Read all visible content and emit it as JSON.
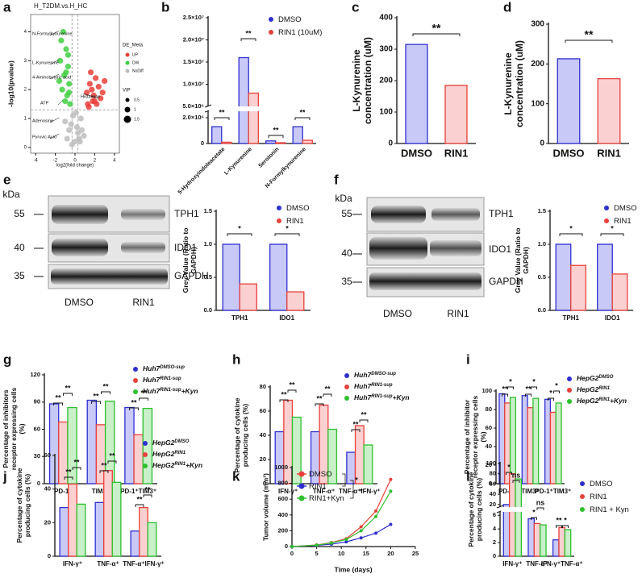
{
  "chart_data": [
    {
      "type": "scatter",
      "label": "a",
      "title": "H_T2DM.vs.H_HC",
      "xlabel": "log2(fold change)",
      "ylabel": "-log10(pvalue)",
      "xlim": [
        -4.5,
        4.5
      ],
      "xticks": [
        -4,
        -2,
        0,
        2,
        4
      ],
      "ylim": [
        -0.2,
        4.6
      ],
      "yticks": [
        0,
        1,
        2,
        3,
        4
      ],
      "threshold_x": [
        -0.3,
        0.3
      ],
      "threshold_y": 1.3,
      "legend_title": "DE_Meta",
      "size_title": "VIP",
      "sizes": [
        0.5,
        1.0,
        1.5
      ],
      "series": [
        {
          "name": "UP",
          "color": "#e8403a",
          "x": [
            1.2,
            1.5,
            1.8,
            2.1,
            2.4,
            1.3,
            1.9,
            2.6,
            3.0,
            1.6,
            2.2,
            1.4,
            2.0,
            2.8,
            1.7
          ],
          "values": [
            1.9,
            2.2,
            1.6,
            2.4,
            2.1,
            1.5,
            1.8,
            1.7,
            2.3,
            2.6,
            1.5,
            1.4,
            1.6,
            1.9,
            2.0
          ]
        },
        {
          "name": "DW",
          "color": "#3fcf3f",
          "x": [
            -1.2,
            -0.9,
            -1.5,
            -0.7,
            -1.1,
            -0.6,
            -1.3,
            -0.8,
            -1.0,
            -0.5,
            -1.4,
            -0.7,
            -0.9,
            -1.6,
            -0.6
          ],
          "values": [
            4.0,
            3.4,
            3.0,
            2.8,
            2.5,
            2.2,
            2.0,
            1.8,
            1.6,
            1.5,
            3.7,
            3.2,
            2.6,
            2.3,
            1.9
          ]
        },
        {
          "name": "NoDiff",
          "color": "#bdbdbd",
          "x": [
            -0.8,
            -0.4,
            0,
            0.3,
            0.6,
            0.9,
            -0.2,
            0.2,
            -0.6,
            0.5,
            -1.0,
            0.1,
            0.4,
            -0.3,
            0.7
          ],
          "values": [
            0.3,
            0.8,
            0.2,
            0.5,
            1.0,
            0.4,
            1.1,
            0.7,
            0.6,
            0.2,
            0.9,
            1.2,
            0.3,
            0.1,
            0.6
          ]
        }
      ],
      "annotations": [
        "N-Formylkynurenine",
        "L-Kynurenine",
        "4-Aminobutyric acid",
        "ATP",
        "Adenosine",
        "Pyruvic Acid",
        "Histamine"
      ]
    },
    {
      "type": "bar",
      "label": "b",
      "categories": [
        "5-Hydroxyindoleacetate",
        "L-Kynurenine",
        "Serotonin",
        "N-Formylkynurenine"
      ],
      "ylim": [
        0,
        25000000
      ],
      "ybreak": [
        2500000,
        5000000
      ],
      "yticks": [
        0,
        {
          "value": 2000000,
          "label": "2.0×10⁶"
        },
        {
          "value": 5000000,
          "label": "5.0×10⁶"
        },
        {
          "value": 10000000,
          "label": "1.0×10⁷"
        },
        {
          "value": 15000000,
          "label": "1.5×10⁷"
        },
        {
          "value": 20000000,
          "label": "2.0×10⁷"
        },
        {
          "value": 25000000,
          "label": "2.5×10⁷"
        }
      ],
      "series": [
        {
          "name": "DMSO",
          "color": "#2f2fd0",
          "fill": "#c9c9f7",
          "values": [
            1300000,
            16000000,
            200000,
            1300000
          ]
        },
        {
          "name": "RIN1 (10uM)",
          "color": "#e8403a",
          "fill": "#fbd0d0",
          "values": [
            100000,
            8000000,
            60000,
            250000
          ]
        }
      ],
      "annotations": [
        "**",
        "**",
        "**",
        "**"
      ]
    },
    {
      "type": "bar",
      "label": "c",
      "ylabel": "L-Kynurenine concentration (uM)",
      "categories": [
        "DMSO",
        "RIN1"
      ],
      "ylim": [
        0,
        400
      ],
      "yticks": [
        0,
        100,
        200,
        300,
        400
      ],
      "series": [
        {
          "colors": [
            "#2f2fd0",
            "#e8403a"
          ],
          "fills": [
            "#c9c9f7",
            "#fbd0d0"
          ],
          "values": [
            315,
            185
          ]
        }
      ],
      "annotations": [
        "**"
      ]
    },
    {
      "type": "bar",
      "label": "d",
      "ylabel": "L-Kynurenine concentration (uM)",
      "categories": [
        "DMSO",
        "RIN1"
      ],
      "ylim": [
        0,
        300
      ],
      "yticks": [
        0,
        100,
        200,
        300
      ],
      "series": [
        {
          "colors": [
            "#2f2fd0",
            "#e8403a"
          ],
          "fills": [
            "#c9c9f7",
            "#fbd0d0"
          ],
          "values": [
            213,
            163
          ]
        }
      ],
      "annotations": [
        "**"
      ]
    },
    {
      "type": "bar",
      "label": "e",
      "ylabel": "Grey Value (Ratio to GAPDH)",
      "categories": [
        "TPH1",
        "IDO1"
      ],
      "ylim": [
        0,
        1.5
      ],
      "yticks": [
        {
          "value": 0,
          "label": "0.0"
        },
        0.5,
        {
          "value": 1,
          "label": "1.0"
        },
        1.5
      ],
      "series": [
        {
          "name": "DMSO",
          "color": "#2f2fd0",
          "fill": "#c9c9f7",
          "values": [
            1.0,
            1.0
          ]
        },
        {
          "name": "RIN1",
          "color": "#e8403a",
          "fill": "#fbd0d0",
          "values": [
            0.4,
            0.28
          ]
        }
      ],
      "annotations": [
        "*",
        "*"
      ],
      "blot": {
        "unit": "kDa",
        "markers": [
          55,
          40,
          35
        ],
        "proteins": [
          "TPH1",
          "IDO1",
          "GAPDH"
        ],
        "lanes": [
          "DMSO",
          "RIN1"
        ]
      }
    },
    {
      "type": "bar",
      "label": "f",
      "ylabel": "Grey Value (Ratio to GAPDH)",
      "categories": [
        "TPH1",
        "IDO1"
      ],
      "ylim": [
        0,
        1.5
      ],
      "yticks": [
        {
          "value": 0,
          "label": "0.0"
        },
        0.5,
        {
          "value": 1,
          "label": "1.0"
        },
        1.5
      ],
      "series": [
        {
          "name": "DMSO",
          "color": "#2f2fd0",
          "fill": "#c9c9f7",
          "values": [
            1.0,
            1.0
          ]
        },
        {
          "name": "RIN1",
          "color": "#e8403a",
          "fill": "#fbd0d0",
          "values": [
            0.68,
            0.55
          ]
        }
      ],
      "annotations": [
        "*",
        "*"
      ],
      "blot": {
        "unit": "kDa",
        "markers": [
          55,
          40,
          35
        ],
        "proteins": [
          "TPH1",
          "IDO1",
          "GAPDH"
        ],
        "lanes": [
          "DMSO",
          "RIN1"
        ]
      }
    },
    {
      "type": "bar",
      "label": "g",
      "ylabel": "Percentage of inhibitors receptor expressing cells (%)",
      "categories": [
        "PD-1⁺",
        "TIM3⁺",
        "PD-1⁺TIM3⁺"
      ],
      "ylim": [
        0,
        120
      ],
      "yticks": [
        0,
        30,
        60,
        90,
        120
      ],
      "series": [
        {
          "name": "Huh7",
          "sup": "DMSO-sup",
          "color": "#2f2fd0",
          "fill": "#c9c9f7",
          "values": [
            88,
            92,
            84
          ]
        },
        {
          "name": "Huh7",
          "sup": "RIN1-sup",
          "color": "#e8403a",
          "fill": "#fbd0d0",
          "values": [
            68,
            65,
            54
          ]
        },
        {
          "name": "Huh7",
          "sup": "RIN1-sup",
          "suffix": "+Kyn",
          "color": "#2ec02e",
          "fill": "#c9f0c9",
          "values": [
            84,
            91,
            83
          ]
        }
      ],
      "annotations": [
        "**",
        "**",
        "**",
        "**",
        "**",
        "**"
      ]
    },
    {
      "type": "bar",
      "label": "h",
      "ylabel": "Percentage of cytokine producing cells (%)",
      "categories": [
        "IFN-γ⁺",
        "TNF-α⁺",
        "TNF-α⁺IFN-γ⁺"
      ],
      "ylim": [
        0,
        80
      ],
      "yticks": [
        0,
        20,
        40,
        60,
        80
      ],
      "series": [
        {
          "name": "Huh7",
          "sup": "DMSO-sup",
          "color": "#2f2fd0",
          "fill": "#c9c9f7",
          "values": [
            43,
            43,
            26
          ]
        },
        {
          "name": "Huh7",
          "sup": "RIN1-sup",
          "color": "#e8403a",
          "fill": "#fbd0d0",
          "values": [
            69,
            65,
            48
          ]
        },
        {
          "name": "Huh7",
          "sup": "RIN1-sup",
          "suffix": "+Kyn",
          "color": "#2ec02e",
          "fill": "#c9f0c9",
          "values": [
            55,
            45,
            32
          ]
        }
      ],
      "annotations": [
        "**",
        "**",
        "**",
        "**",
        "**",
        "**"
      ]
    },
    {
      "type": "bar",
      "label": "i",
      "ylabel": "Percentage of inhibitor receptor expressing cells (%)",
      "categories": [
        "PD-1⁺",
        "TIM3⁺",
        "PD-1⁺TIM3⁺"
      ],
      "ylim": [
        0,
        100
      ],
      "yticks": [
        0,
        20,
        40,
        60,
        80,
        100
      ],
      "series": [
        {
          "name": "HepG2",
          "sup": "DMSO",
          "color": "#2f2fd0",
          "fill": "#c9c9f7",
          "values": [
            97,
            95,
            91
          ]
        },
        {
          "name": "HepG2",
          "sup": "RIN1",
          "color": "#e8403a",
          "fill": "#fbd0d0",
          "values": [
            87,
            82,
            77
          ]
        },
        {
          "name": "HepG2",
          "sup": "RIN1",
          "suffix": "+Kyn",
          "color": "#2ec02e",
          "fill": "#c9f0c9",
          "values": [
            93,
            92,
            87
          ]
        }
      ],
      "annotations": [
        "**",
        "*",
        "**",
        "*",
        "*",
        "*"
      ]
    },
    {
      "type": "bar",
      "label": "j",
      "ylabel": "Percentage of cytokine producing cells (%)",
      "categories": [
        "IFN-γ⁺",
        "TNF-α⁺",
        "TNF-α⁺IFN-γ⁺"
      ],
      "ylim": [
        0,
        60
      ],
      "yticks": [
        0,
        20,
        40,
        60
      ],
      "series": [
        {
          "name": "HepG2",
          "sup": "DMSO",
          "color": "#2f2fd0",
          "fill": "#c9c9f7",
          "values": [
            29,
            32,
            15
          ]
        },
        {
          "name": "HepG2",
          "sup": "RIN1",
          "color": "#e8403a",
          "fill": "#fbd0d0",
          "values": [
            43,
            51,
            29
          ]
        },
        {
          "name": "HepG2",
          "sup": "RIN1",
          "suffix": "+Kyn",
          "color": "#2ec02e",
          "fill": "#c9f0c9",
          "values": [
            31,
            44,
            20
          ]
        }
      ],
      "annotations": [
        "**",
        "**",
        "**",
        "**",
        "**",
        "**"
      ]
    },
    {
      "type": "line",
      "label": "k",
      "xlabel": "Time (days)",
      "ylabel": "Tumor volume (mm³)",
      "x": [
        0,
        5,
        8,
        11,
        14,
        17,
        20
      ],
      "xlim": [
        0,
        25
      ],
      "xticks": [
        0,
        5,
        10,
        15,
        20,
        25
      ],
      "ylim": [
        0,
        1000
      ],
      "yticks": [
        0,
        200,
        400,
        600,
        800,
        1000
      ],
      "series": [
        {
          "name": "DMSO",
          "color": "#e8403a",
          "values": [
            0,
            20,
            50,
            100,
            250,
            450,
            850
          ]
        },
        {
          "name": "RIN1",
          "color": "#2f2fd0",
          "values": [
            0,
            15,
            30,
            60,
            110,
            170,
            280
          ]
        },
        {
          "name": "RIN1+Kyn",
          "color": "#2ec02e",
          "values": [
            0,
            18,
            45,
            90,
            200,
            380,
            700
          ]
        }
      ],
      "annotations": [
        "*",
        "*"
      ]
    },
    {
      "type": "bar",
      "label": "l",
      "ylabel": "Percentage of cytokine producing cells (%)",
      "categories": [
        "IFN-γ⁺",
        "TNF-α⁺",
        "IFN-γ⁺TNF-α⁺"
      ],
      "ylim": [
        0,
        100
      ],
      "ybreak": [
        6.5,
        15
      ],
      "yticks": [
        0,
        2,
        4,
        6,
        20,
        40,
        60,
        80,
        100
      ],
      "series": [
        {
          "name": "DMSO",
          "color": "#2f2fd0",
          "fill": "#c9c9f7",
          "values": [
            20,
            5.5,
            2.4
          ]
        },
        {
          "name": "RIN1",
          "color": "#e8403a",
          "fill": "#fbd0d0",
          "values": [
            80,
            4.8,
            4.2
          ]
        },
        {
          "name": "RIN1 + Kyn",
          "color": "#2ec02e",
          "fill": "#c9f0c9",
          "values": [
            70,
            4.6,
            3.9
          ]
        }
      ],
      "annotations": [
        "*",
        "ns",
        "*",
        "ns",
        "**",
        "*"
      ]
    }
  ]
}
